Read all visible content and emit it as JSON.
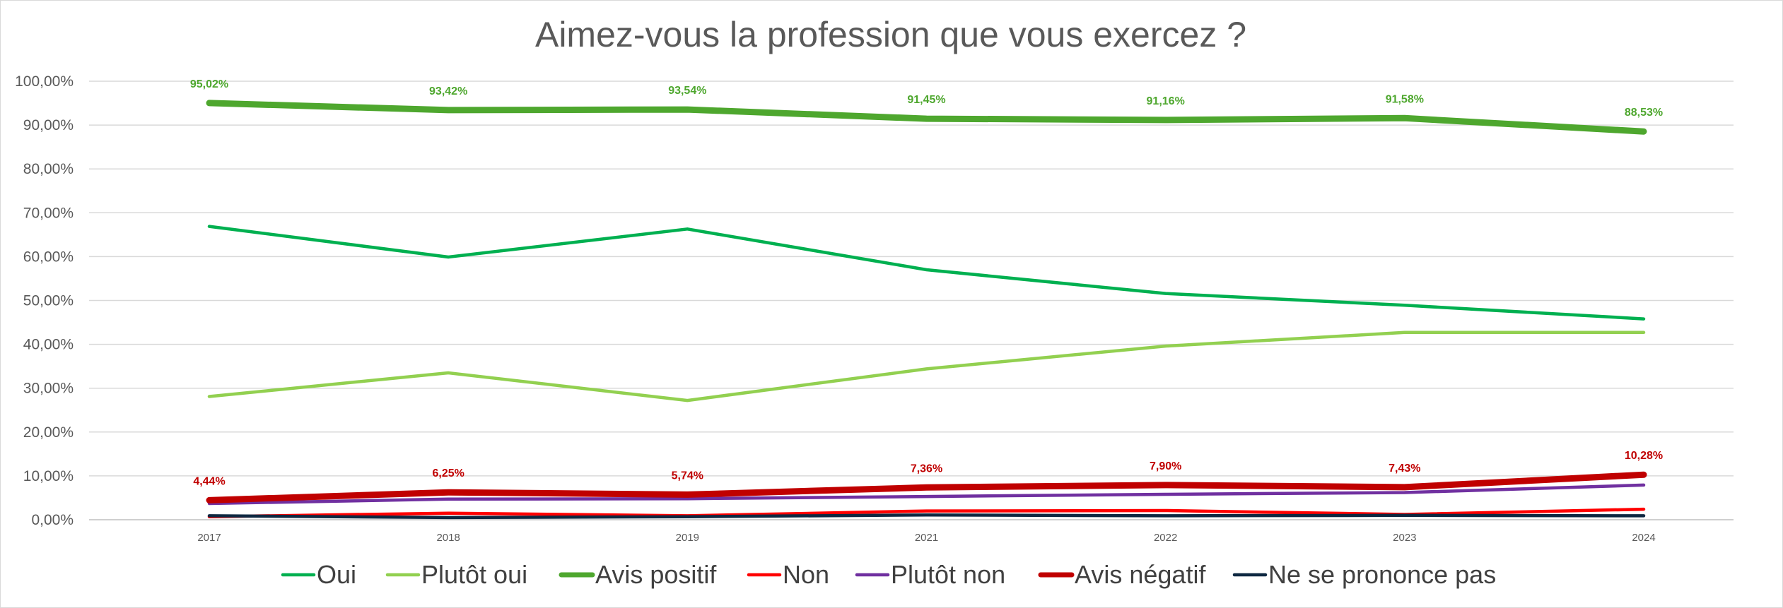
{
  "chart_data": {
    "type": "line",
    "title": "Aimez-vous la profession que vous exercez ?",
    "xlabel": "",
    "ylabel": "",
    "categories": [
      "2017",
      "2018",
      "2019",
      "2021",
      "2022",
      "2023",
      "2024"
    ],
    "ylim": [
      0,
      100
    ],
    "yticks": [
      "0,00%",
      "10,00%",
      "20,00%",
      "30,00%",
      "40,00%",
      "50,00%",
      "60,00%",
      "70,00%",
      "80,00%",
      "90,00%",
      "100,00%"
    ],
    "grid": true,
    "legend_position": "bottom",
    "series": [
      {
        "name": "Oui",
        "color": "#00b050",
        "values": [
          66.9,
          59.9,
          66.3,
          57.0,
          51.6,
          48.9,
          45.8
        ]
      },
      {
        "name": "Plutôt oui",
        "color": "#92d050",
        "values": [
          28.1,
          33.5,
          27.2,
          34.4,
          39.6,
          42.7,
          42.7
        ]
      },
      {
        "name": "Avis positif",
        "color": "#4ea72e",
        "values": [
          95.02,
          93.42,
          93.54,
          91.45,
          91.16,
          91.58,
          88.53
        ],
        "labels": [
          "95,02%",
          "93,42%",
          "93,54%",
          "91,45%",
          "91,16%",
          "91,58%",
          "88,53%"
        ]
      },
      {
        "name": "Non",
        "color": "#ff0000",
        "values": [
          0.7,
          1.5,
          0.9,
          2.0,
          2.1,
          1.2,
          2.4
        ]
      },
      {
        "name": "Plutôt non",
        "color": "#7030a0",
        "values": [
          3.7,
          4.7,
          4.8,
          5.3,
          5.8,
          6.2,
          7.9
        ]
      },
      {
        "name": "Avis négatif",
        "color": "#c00000",
        "values": [
          4.44,
          6.25,
          5.74,
          7.36,
          7.9,
          7.43,
          10.28
        ],
        "labels": [
          "4,44%",
          "6,25%",
          "5,74%",
          "7,36%",
          "7,90%",
          "7,43%",
          "10,28%"
        ]
      },
      {
        "name": "Ne se prononce pas",
        "color": "#0e2841",
        "values": [
          0.9,
          0.5,
          0.7,
          1.1,
          0.9,
          1.0,
          0.9
        ]
      }
    ]
  }
}
